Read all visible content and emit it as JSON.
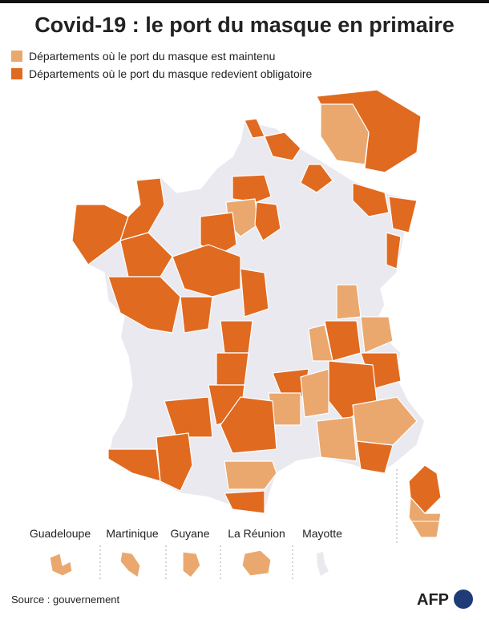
{
  "title": "Covid-19 : le port du masque en primaire",
  "legend": [
    {
      "label": "Départements où le port du masque est maintenu",
      "color": "#eaa86e"
    },
    {
      "label": "Départements où le port du masque redevient obligatoire",
      "color": "#e06a20"
    }
  ],
  "overseas": [
    "Guadeloupe",
    "Martinique",
    "Guyane",
    "La Réunion",
    "Mayotte"
  ],
  "source": "Source : gouvernement",
  "logo": "AFP"
}
